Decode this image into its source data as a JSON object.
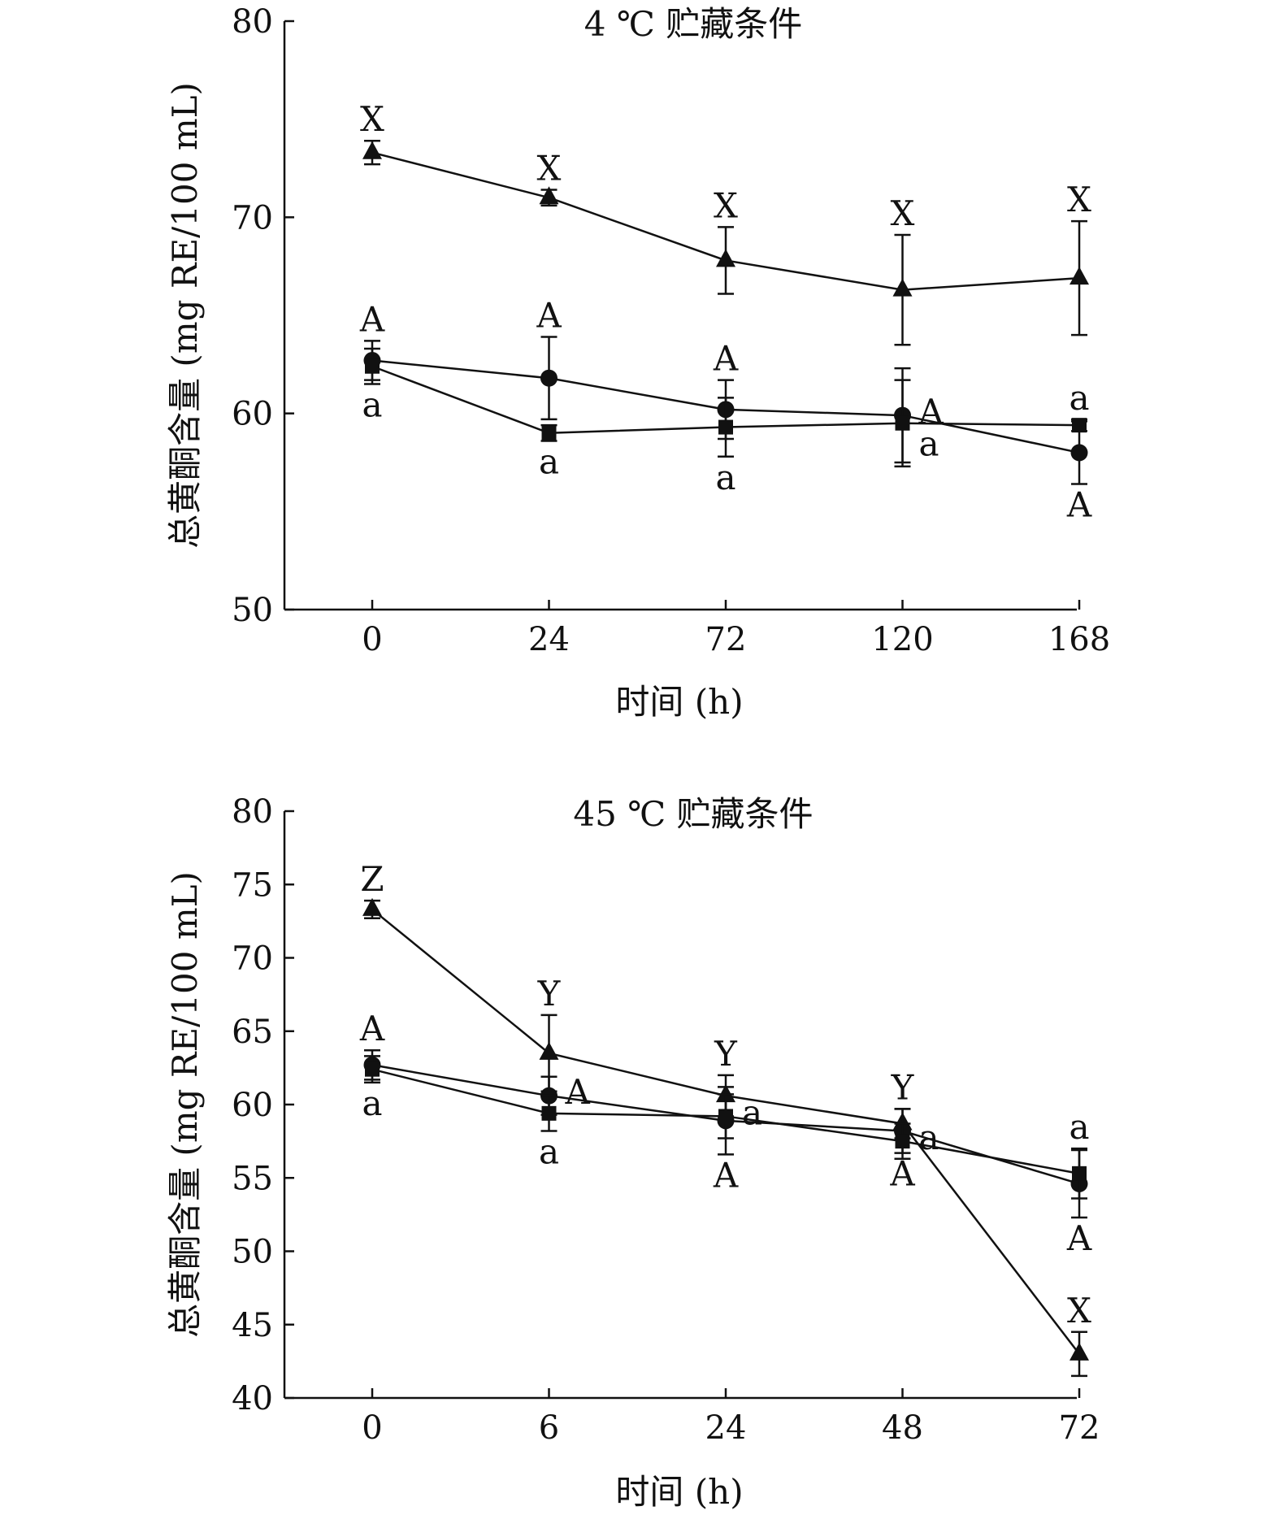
{
  "chart_data": [
    {
      "type": "line",
      "title": "4 ℃ 贮藏条件",
      "xlabel": "时间 (h)",
      "ylabel": "总黄酮含量 (mg RE/100 mL)",
      "categories": [
        "0",
        "24",
        "72",
        "120",
        "168"
      ],
      "ylim": [
        50,
        80
      ],
      "yticks": [
        50,
        60,
        70,
        80
      ],
      "series": [
        {
          "marker": "triangle",
          "values": [
            73.3,
            71.0,
            67.8,
            66.3,
            66.9
          ],
          "errors": [
            0.6,
            0.4,
            1.7,
            2.8,
            2.9
          ],
          "labels": [
            "X",
            "X",
            "X",
            "X",
            "X"
          ],
          "label_pos": [
            "above",
            "above",
            "above",
            "above",
            "above"
          ]
        },
        {
          "marker": "circle",
          "values": [
            62.7,
            61.8,
            60.2,
            59.9,
            58.0
          ],
          "errors": [
            1.0,
            2.1,
            1.5,
            2.4,
            1.6
          ],
          "labels": [
            "A",
            "A",
            "A",
            "A",
            "A"
          ],
          "label_pos": [
            "above",
            "above",
            "above",
            "right",
            "below"
          ]
        },
        {
          "marker": "square",
          "values": [
            62.4,
            59.0,
            59.3,
            59.5,
            59.4
          ],
          "errors": [
            0.9,
            0.4,
            1.5,
            2.2,
            0.3
          ],
          "labels": [
            "a",
            "a",
            "a",
            "a",
            "a"
          ],
          "label_pos": [
            "below",
            "below",
            "below",
            "right-below",
            "above"
          ]
        }
      ]
    },
    {
      "type": "line",
      "title": "45 ℃ 贮藏条件",
      "xlabel": "时间 (h)",
      "ylabel": "总黄酮含量 (mg RE/100 mL)",
      "categories": [
        "0",
        "6",
        "24",
        "48",
        "72"
      ],
      "ylim": [
        40,
        80
      ],
      "yticks": [
        40,
        45,
        50,
        55,
        60,
        65,
        70,
        75,
        80
      ],
      "series": [
        {
          "marker": "triangle",
          "values": [
            73.3,
            63.5,
            60.6,
            58.7,
            43.0
          ],
          "errors": [
            0.6,
            2.6,
            1.4,
            1.0,
            1.5
          ],
          "labels": [
            "Z",
            "Y",
            "Y",
            "Y",
            "X"
          ],
          "label_pos": [
            "above",
            "above",
            "above",
            "above",
            "above"
          ]
        },
        {
          "marker": "circle",
          "values": [
            62.7,
            60.6,
            58.9,
            58.2,
            54.6
          ],
          "errors": [
            1.0,
            1.3,
            2.3,
            1.5,
            2.3
          ],
          "labels": [
            "A",
            "A",
            "A",
            "A",
            "A"
          ],
          "label_pos": [
            "above",
            "right",
            "below",
            "below",
            "below"
          ]
        },
        {
          "marker": "square",
          "values": [
            62.4,
            59.4,
            59.2,
            57.5,
            55.3
          ],
          "errors": [
            0.9,
            1.2,
            1.5,
            1.2,
            1.7
          ],
          "labels": [
            "a",
            "a",
            "a",
            "a",
            "a"
          ],
          "label_pos": [
            "below",
            "below",
            "right",
            "right",
            "above"
          ]
        }
      ]
    }
  ]
}
